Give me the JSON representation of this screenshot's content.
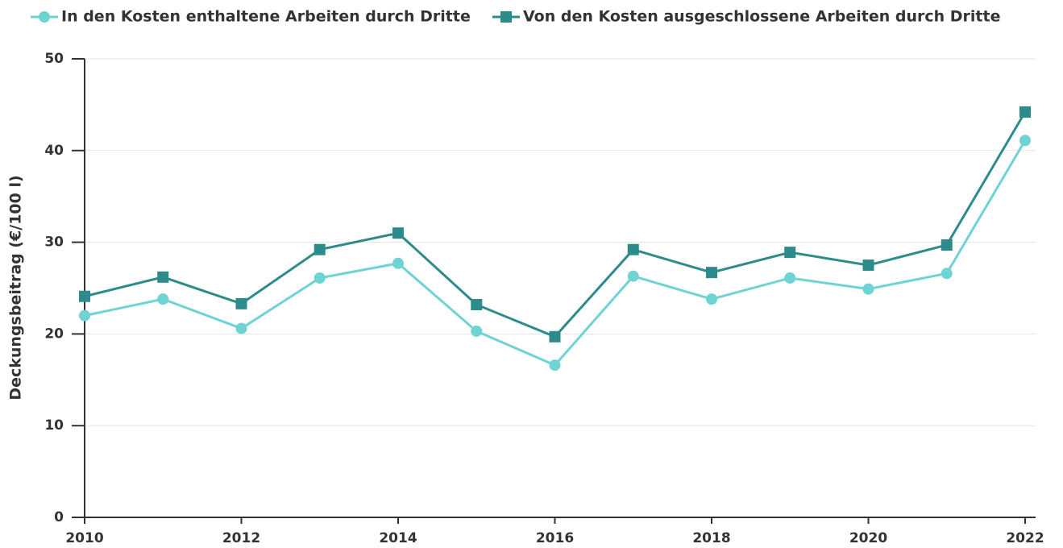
{
  "chart_data": {
    "type": "line",
    "y_label": "Deckungsbeitrag (€/100 l)",
    "x": [
      2010,
      2011,
      2012,
      2013,
      2014,
      2015,
      2016,
      2017,
      2018,
      2019,
      2020,
      2021,
      2022
    ],
    "series": [
      {
        "name": "In den Kosten enthaltene Arbeiten durch Dritte",
        "color": "#6fd3d3",
        "marker": "circle",
        "values": [
          22.0,
          23.8,
          20.6,
          26.1,
          27.7,
          20.3,
          16.6,
          26.3,
          23.8,
          26.1,
          24.9,
          26.6,
          41.1
        ]
      },
      {
        "name": "Von den Kosten ausgeschlossene Arbeiten durch Dritte",
        "color": "#2e8b8b",
        "marker": "square",
        "values": [
          24.1,
          26.2,
          23.3,
          29.2,
          31.0,
          23.2,
          19.7,
          29.2,
          26.7,
          28.9,
          27.5,
          29.7,
          44.2
        ]
      }
    ],
    "xlim": [
      2010,
      2022
    ],
    "xticks": [
      2010,
      2012,
      2014,
      2016,
      2018,
      2020,
      2022
    ],
    "ylim": [
      0,
      50
    ],
    "yticks": [
      0,
      10,
      20,
      30,
      40,
      50
    ],
    "grid": true,
    "legend": "top"
  }
}
